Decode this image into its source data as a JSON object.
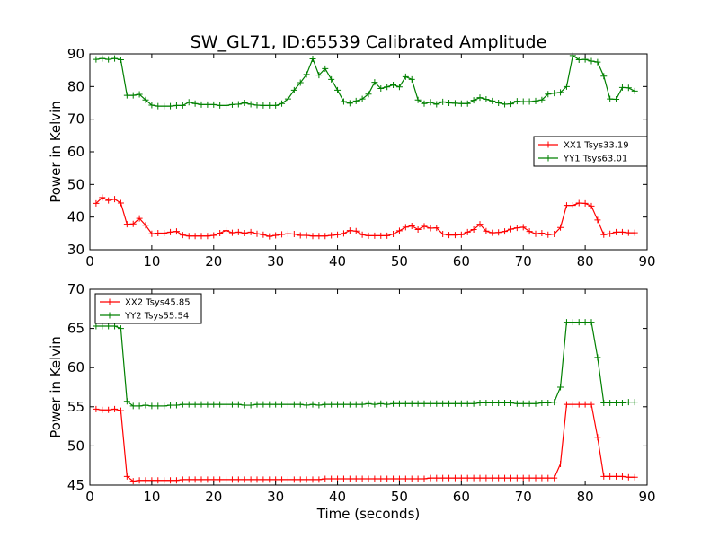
{
  "chart_data": [
    {
      "type": "line",
      "title": "SW_GL71, ID:65539 Calibrated Amplitude",
      "xlabel": "",
      "ylabel": "Power in Kelvin",
      "xlim": [
        0,
        90
      ],
      "ylim": [
        30,
        90
      ],
      "xticks": [
        0,
        10,
        20,
        30,
        40,
        50,
        60,
        70,
        80,
        90
      ],
      "yticks": [
        30,
        40,
        50,
        60,
        70,
        80,
        90
      ],
      "grid": false,
      "legend_position": "center-right",
      "series": [
        {
          "name": "XX1 Tsys33.19",
          "color": "#ff0000",
          "x": [
            1,
            2,
            3,
            4,
            5,
            6,
            7,
            8,
            9,
            10,
            11,
            12,
            13,
            14,
            15,
            16,
            17,
            18,
            19,
            20,
            21,
            22,
            23,
            24,
            25,
            26,
            27,
            28,
            29,
            30,
            31,
            32,
            33,
            34,
            35,
            36,
            37,
            38,
            39,
            40,
            41,
            42,
            43,
            44,
            45,
            46,
            47,
            48,
            49,
            50,
            51,
            52,
            53,
            54,
            55,
            56,
            57,
            58,
            59,
            60,
            61,
            62,
            63,
            64,
            65,
            66,
            67,
            68,
            69,
            70,
            71,
            72,
            73,
            74,
            75,
            76,
            77,
            78,
            79,
            80,
            81,
            82,
            83,
            84,
            85,
            86,
            87,
            88
          ],
          "values": [
            44.2,
            46,
            45.1,
            45.5,
            44.3,
            37.8,
            37.9,
            39.6,
            37.5,
            34.9,
            35.1,
            35.1,
            35.4,
            35.6,
            34.5,
            34.2,
            34.2,
            34.2,
            34.2,
            34.4,
            35.1,
            35.9,
            35.2,
            35.4,
            35.1,
            35.4,
            34.9,
            34.6,
            34.1,
            34.4,
            34.7,
            34.9,
            34.8,
            34.4,
            34.4,
            34.2,
            34.2,
            34.2,
            34.4,
            34.6,
            35,
            35.9,
            35.7,
            34.6,
            34.3,
            34.3,
            34.3,
            34.3,
            34.8,
            35.8,
            36.9,
            37.3,
            36.2,
            37.2,
            36.6,
            36.7,
            34.8,
            34.5,
            34.5,
            34.6,
            35.4,
            36.2,
            37.8,
            35.7,
            35.2,
            35.3,
            35.6,
            36.3,
            36.7,
            36.9,
            35.6,
            34.9,
            35.1,
            34.6,
            34.8,
            36.8,
            43.6,
            43.6,
            44.3,
            44.2,
            43.4,
            39.1,
            34.6,
            34.9,
            35.4,
            35.4,
            35.2,
            35.2
          ]
        },
        {
          "name": "YY1 Tsys63.01",
          "color": "#008000",
          "x": [
            1,
            2,
            3,
            4,
            5,
            6,
            7,
            8,
            9,
            10,
            11,
            12,
            13,
            14,
            15,
            16,
            17,
            18,
            19,
            20,
            21,
            22,
            23,
            24,
            25,
            26,
            27,
            28,
            29,
            30,
            31,
            32,
            33,
            34,
            35,
            36,
            37,
            38,
            39,
            40,
            41,
            42,
            43,
            44,
            45,
            46,
            47,
            48,
            49,
            50,
            51,
            52,
            53,
            54,
            55,
            56,
            57,
            58,
            59,
            60,
            61,
            62,
            63,
            64,
            65,
            66,
            67,
            68,
            69,
            70,
            71,
            72,
            73,
            74,
            75,
            76,
            77,
            78,
            79,
            80,
            81,
            82,
            83,
            84,
            85,
            86,
            87,
            88
          ],
          "values": [
            88.3,
            88.6,
            88.3,
            88.6,
            88.2,
            77.3,
            77.3,
            77.6,
            75.9,
            74.3,
            74,
            74,
            74,
            74.2,
            74.2,
            75.2,
            74.8,
            74.5,
            74.5,
            74.5,
            74.2,
            74.2,
            74.5,
            74.6,
            75,
            74.6,
            74.3,
            74.2,
            74.2,
            74.2,
            74.8,
            76.2,
            78.9,
            81.2,
            83.7,
            88.5,
            83.5,
            85.5,
            82.2,
            78.9,
            75.4,
            74.9,
            75.6,
            76.2,
            77.7,
            81.3,
            79.4,
            79.9,
            80.5,
            79.9,
            83,
            82.2,
            75.9,
            74.8,
            75.2,
            74.6,
            75.3,
            75,
            74.9,
            74.8,
            74.8,
            75.8,
            76.6,
            76.1,
            75.6,
            75,
            74.6,
            74.7,
            75.5,
            75.4,
            75.4,
            75.6,
            75.9,
            77.7,
            78,
            78.2,
            80,
            89.5,
            88.2,
            88.3,
            87.8,
            87.5,
            83.2,
            76.2,
            76.1,
            79.7,
            79.6,
            78.6
          ]
        }
      ]
    },
    {
      "type": "line",
      "title": "",
      "xlabel": "Time (seconds)",
      "ylabel": "Power in Kelvin",
      "xlim": [
        0,
        90
      ],
      "ylim": [
        45,
        70
      ],
      "xticks": [
        0,
        10,
        20,
        30,
        40,
        50,
        60,
        70,
        80,
        90
      ],
      "yticks": [
        45,
        50,
        55,
        60,
        65,
        70
      ],
      "grid": false,
      "legend_position": "top-left",
      "series": [
        {
          "name": "XX2 Tsys45.85",
          "color": "#ff0000",
          "x": [
            1,
            2,
            3,
            4,
            5,
            6,
            7,
            8,
            9,
            10,
            11,
            12,
            13,
            14,
            15,
            16,
            17,
            18,
            19,
            20,
            21,
            22,
            23,
            24,
            25,
            26,
            27,
            28,
            29,
            30,
            31,
            32,
            33,
            34,
            35,
            36,
            37,
            38,
            39,
            40,
            41,
            42,
            43,
            44,
            45,
            46,
            47,
            48,
            49,
            50,
            51,
            52,
            53,
            54,
            55,
            56,
            57,
            58,
            59,
            60,
            61,
            62,
            63,
            64,
            65,
            66,
            67,
            68,
            69,
            70,
            71,
            72,
            73,
            74,
            75,
            76,
            77,
            78,
            79,
            80,
            81,
            82,
            83,
            84,
            85,
            86,
            87,
            88
          ],
          "values": [
            54.7,
            54.6,
            54.6,
            54.7,
            54.5,
            46.1,
            45.5,
            45.6,
            45.6,
            45.6,
            45.6,
            45.6,
            45.6,
            45.6,
            45.7,
            45.7,
            45.7,
            45.7,
            45.7,
            45.7,
            45.7,
            45.7,
            45.7,
            45.7,
            45.7,
            45.7,
            45.7,
            45.7,
            45.7,
            45.7,
            45.7,
            45.7,
            45.7,
            45.7,
            45.7,
            45.7,
            45.7,
            45.8,
            45.8,
            45.8,
            45.8,
            45.8,
            45.8,
            45.8,
            45.8,
            45.8,
            45.8,
            45.8,
            45.8,
            45.8,
            45.8,
            45.8,
            45.8,
            45.8,
            45.9,
            45.9,
            45.9,
            45.9,
            45.9,
            45.9,
            45.9,
            45.9,
            45.9,
            45.9,
            45.9,
            45.9,
            45.9,
            45.9,
            45.9,
            45.9,
            45.9,
            45.9,
            45.9,
            45.9,
            45.9,
            47.7,
            55.3,
            55.3,
            55.3,
            55.3,
            55.3,
            51.1,
            46.1,
            46.1,
            46.1,
            46.1,
            46,
            46
          ]
        },
        {
          "name": "YY2 Tsys55.54",
          "color": "#008000",
          "x": [
            1,
            2,
            3,
            4,
            5,
            6,
            7,
            8,
            9,
            10,
            11,
            12,
            13,
            14,
            15,
            16,
            17,
            18,
            19,
            20,
            21,
            22,
            23,
            24,
            25,
            26,
            27,
            28,
            29,
            30,
            31,
            32,
            33,
            34,
            35,
            36,
            37,
            38,
            39,
            40,
            41,
            42,
            43,
            44,
            45,
            46,
            47,
            48,
            49,
            50,
            51,
            52,
            53,
            54,
            55,
            56,
            57,
            58,
            59,
            60,
            61,
            62,
            63,
            64,
            65,
            66,
            67,
            68,
            69,
            70,
            71,
            72,
            73,
            74,
            75,
            76,
            77,
            78,
            79,
            80,
            81,
            82,
            83,
            84,
            85,
            86,
            87,
            88
          ],
          "values": [
            65.3,
            65.3,
            65.3,
            65.3,
            65,
            55.7,
            55.1,
            55.1,
            55.2,
            55.1,
            55.1,
            55.1,
            55.2,
            55.2,
            55.3,
            55.3,
            55.3,
            55.3,
            55.3,
            55.3,
            55.3,
            55.3,
            55.3,
            55.3,
            55.2,
            55.2,
            55.3,
            55.3,
            55.3,
            55.3,
            55.3,
            55.3,
            55.3,
            55.3,
            55.2,
            55.3,
            55.2,
            55.3,
            55.3,
            55.3,
            55.3,
            55.3,
            55.3,
            55.3,
            55.4,
            55.3,
            55.4,
            55.3,
            55.4,
            55.4,
            55.4,
            55.4,
            55.4,
            55.4,
            55.4,
            55.4,
            55.4,
            55.4,
            55.4,
            55.4,
            55.4,
            55.4,
            55.5,
            55.5,
            55.5,
            55.5,
            55.5,
            55.5,
            55.4,
            55.4,
            55.4,
            55.4,
            55.5,
            55.5,
            55.6,
            57.5,
            65.8,
            65.8,
            65.8,
            65.8,
            65.8,
            61.3,
            55.5,
            55.5,
            55.5,
            55.5,
            55.6,
            55.6
          ]
        }
      ]
    }
  ]
}
